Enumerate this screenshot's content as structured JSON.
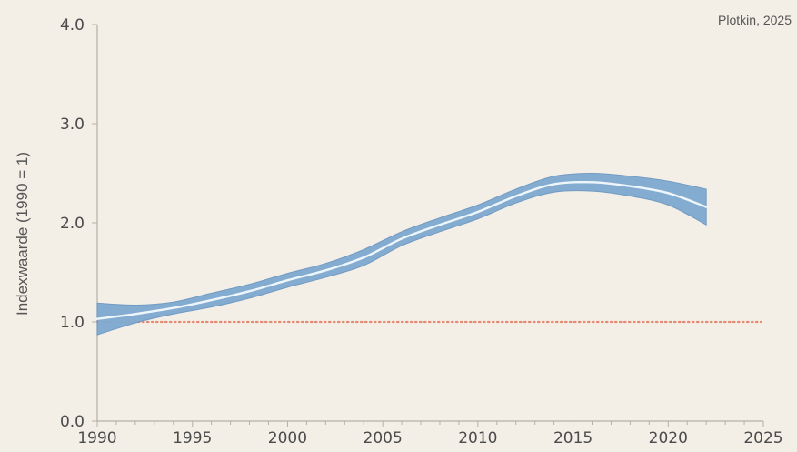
{
  "source": "Plotkin, 2025",
  "chart_data": {
    "type": "line",
    "ylabel": "Indexwaarde (1990 = 1)",
    "xlabel": "",
    "xlim": [
      1990,
      2025
    ],
    "ylim": [
      0,
      4
    ],
    "x_ticks": [
      "1990",
      "1995",
      "2000",
      "2005",
      "2010",
      "2015",
      "2020",
      "2025"
    ],
    "y_ticks": [
      "0.0",
      "1.0",
      "2.0",
      "3.0",
      "4.0"
    ],
    "reference_line": {
      "y": 1.0,
      "style": "dotted",
      "color": "#e58a74"
    },
    "series": [
      {
        "x": [
          1990,
          1992,
          1994,
          1996,
          1998,
          2000,
          2002,
          2004,
          2006,
          2008,
          2010,
          2012,
          2014,
          2016,
          2018,
          2020,
          2022
        ],
        "y": [
          1.03,
          1.08,
          1.14,
          1.22,
          1.31,
          1.42,
          1.52,
          1.65,
          1.84,
          1.98,
          2.11,
          2.27,
          2.39,
          2.41,
          2.37,
          2.3,
          2.16
        ],
        "upper": [
          1.19,
          1.17,
          1.2,
          1.29,
          1.38,
          1.49,
          1.59,
          1.73,
          1.91,
          2.05,
          2.18,
          2.34,
          2.47,
          2.5,
          2.47,
          2.42,
          2.34
        ],
        "lower": [
          0.87,
          0.99,
          1.08,
          1.15,
          1.24,
          1.35,
          1.45,
          1.57,
          1.77,
          1.91,
          2.04,
          2.2,
          2.31,
          2.32,
          2.27,
          2.18,
          1.98
        ],
        "line_color": "#eef6fb",
        "band_color": "#7fa9cf"
      }
    ],
    "grid": false,
    "legend": "none"
  }
}
